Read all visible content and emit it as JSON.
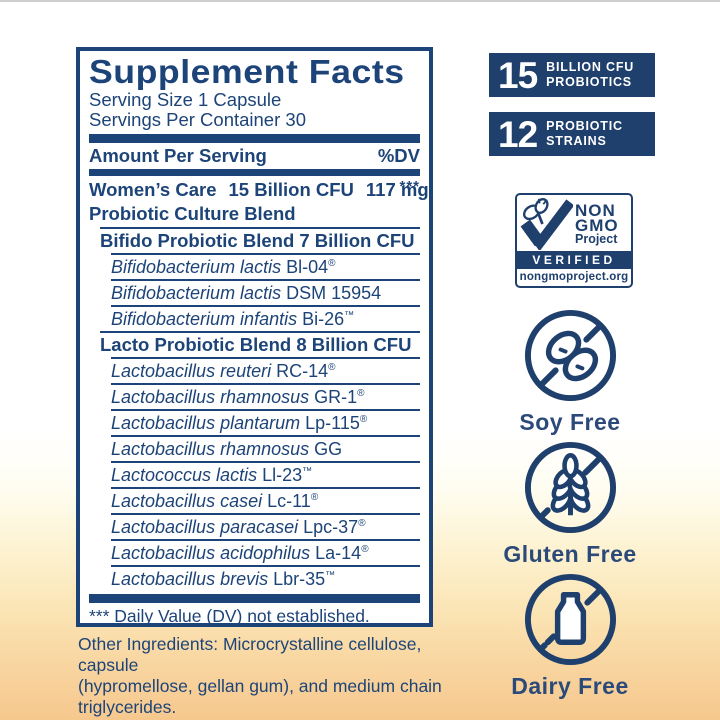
{
  "label": {
    "title": "Supplement Facts",
    "serving_size": "Serving Size 1 Capsule",
    "servings_per_container": "Servings Per Container 30",
    "amount_per_serving": "Amount Per Serving",
    "dv_header": "%DV",
    "blend": {
      "name": "Women’s Care",
      "cfu": "15 Billion CFU",
      "weight": "117 mg",
      "dv_value": "***",
      "name_line2": "Probiotic Culture Blend"
    },
    "sections": [
      {
        "header": "Bifido Probiotic Blend 7 Billion CFU",
        "strains": [
          {
            "species": "Bifidobacterium lactis",
            "code": "Bl-04",
            "mark": "®"
          },
          {
            "species": "Bifidobacterium lactis",
            "code": "DSM 15954",
            "mark": ""
          },
          {
            "species": "Bifidobacterium infantis",
            "code": "Bi-26",
            "mark": "™"
          }
        ]
      },
      {
        "header": "Lacto Probiotic Blend 8 Billion CFU",
        "strains": [
          {
            "species": "Lactobacillus reuteri",
            "code": "RC-14",
            "mark": "®"
          },
          {
            "species": "Lactobacillus rhamnosus",
            "code": "GR-1",
            "mark": "®"
          },
          {
            "species": "Lactobacillus plantarum",
            "code": "Lp-115",
            "mark": "®"
          },
          {
            "species": "Lactobacillus rhamnosus",
            "code": "GG",
            "mark": ""
          },
          {
            "species": "Lactococcus lactis",
            "code": "Ll-23",
            "mark": "™"
          },
          {
            "species": "Lactobacillus casei",
            "code": "Lc-11",
            "mark": "®"
          },
          {
            "species": "Lactobacillus paracasei",
            "code": "Lpc-37",
            "mark": "®"
          },
          {
            "species": "Lactobacillus acidophilus",
            "code": "La-14",
            "mark": "®"
          },
          {
            "species": "Lactobacillus brevis",
            "code": "Lbr-35",
            "mark": "™"
          }
        ]
      }
    ],
    "footnote": "*** Daily Value (DV) not established.",
    "other_ingredients_lines": [
      "Other Ingredients: Microcrystalline cellulose, capsule",
      "(hypromellose, gellan gum), and medium chain triglycerides."
    ]
  },
  "badges": [
    {
      "number": "15",
      "lines": [
        "BILLION CFU",
        "PROBIOTICS"
      ]
    },
    {
      "number": "12",
      "lines": [
        "PROBIOTIC",
        "STRAINS"
      ]
    }
  ],
  "non_gmo_seal": {
    "word1": "NON",
    "word2": "GMO",
    "word3": "Project",
    "verified": "VERIFIED",
    "url": "nongmoproject.org"
  },
  "free_badges": [
    {
      "icon": "soybean-icon",
      "label": "Soy Free"
    },
    {
      "icon": "wheat-icon",
      "label": "Gluten Free"
    },
    {
      "icon": "milk-bottle-icon",
      "label": "Dairy Free"
    }
  ],
  "colors": {
    "label_navy": "#1d4478",
    "badge_navy": "#1f3f6d",
    "background_bottom": "#f6c88e"
  }
}
